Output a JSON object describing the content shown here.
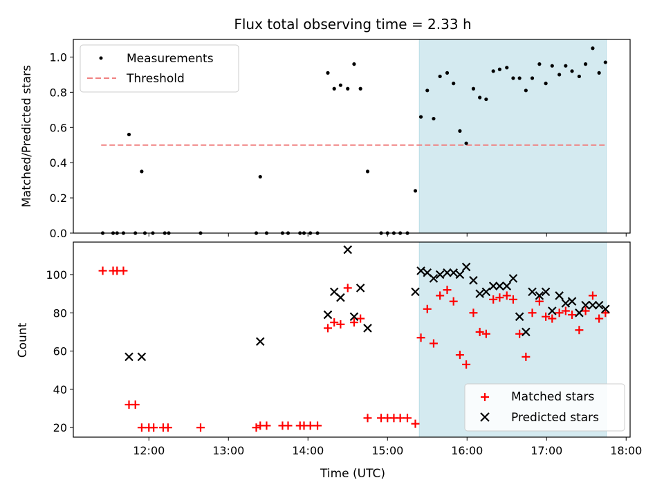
{
  "chart_data": [
    {
      "type": "scatter",
      "title": "Flux total observing time = 2.33 h",
      "xlabel": "",
      "ylabel": "Matched/Predicted stars",
      "xlim": [
        11.05,
        18.05
      ],
      "ylim": [
        0.0,
        1.1
      ],
      "yticks": [
        0.0,
        0.2,
        0.4,
        0.6,
        0.8,
        1.0
      ],
      "ytick_labels": [
        "0.0",
        "0.2",
        "0.4",
        "0.6",
        "0.8",
        "1.0"
      ],
      "highlight_span": {
        "x": [
          15.4,
          17.75
        ],
        "color": "#d4eaf0"
      },
      "legend": {
        "position": "upper-left",
        "entries": [
          {
            "label": "Measurements",
            "marker": "dot",
            "color": "#000000"
          },
          {
            "label": "Threshold",
            "marker": "dashed-line",
            "color": "#f08080"
          }
        ]
      },
      "threshold": {
        "value": 0.5,
        "x": [
          11.4,
          17.75
        ]
      },
      "series": [
        {
          "name": "Measurements",
          "color": "#000000",
          "points": [
            [
              11.42,
              0
            ],
            [
              11.55,
              0
            ],
            [
              11.6,
              0
            ],
            [
              11.68,
              0
            ],
            [
              11.75,
              0.56
            ],
            [
              11.83,
              0
            ],
            [
              11.91,
              0.35
            ],
            [
              11.95,
              0
            ],
            [
              12.05,
              0
            ],
            [
              12.2,
              0
            ],
            [
              12.25,
              0
            ],
            [
              12.65,
              0
            ],
            [
              13.35,
              0
            ],
            [
              13.4,
              0.32
            ],
            [
              13.48,
              0
            ],
            [
              13.68,
              0
            ],
            [
              13.75,
              0
            ],
            [
              13.9,
              0
            ],
            [
              13.95,
              0
            ],
            [
              14.03,
              0
            ],
            [
              14.12,
              0
            ],
            [
              14.25,
              0.91
            ],
            [
              14.33,
              0.82
            ],
            [
              14.41,
              0.84
            ],
            [
              14.5,
              0.82
            ],
            [
              14.58,
              0.96
            ],
            [
              14.66,
              0.82
            ],
            [
              14.75,
              0.35
            ],
            [
              14.92,
              0
            ],
            [
              15.0,
              0
            ],
            [
              15.08,
              0
            ],
            [
              15.16,
              0
            ],
            [
              15.25,
              0
            ],
            [
              15.35,
              0.24
            ],
            [
              15.42,
              0.66
            ],
            [
              15.5,
              0.81
            ],
            [
              15.58,
              0.65
            ],
            [
              15.66,
              0.89
            ],
            [
              15.75,
              0.91
            ],
            [
              15.83,
              0.85
            ],
            [
              15.91,
              0.58
            ],
            [
              15.99,
              0.51
            ],
            [
              16.08,
              0.82
            ],
            [
              16.16,
              0.77
            ],
            [
              16.24,
              0.76
            ],
            [
              16.33,
              0.92
            ],
            [
              16.41,
              0.93
            ],
            [
              16.5,
              0.94
            ],
            [
              16.58,
              0.88
            ],
            [
              16.66,
              0.88
            ],
            [
              16.74,
              0.81
            ],
            [
              16.82,
              0.88
            ],
            [
              16.91,
              0.96
            ],
            [
              16.99,
              0.85
            ],
            [
              17.07,
              0.95
            ],
            [
              17.16,
              0.9
            ],
            [
              17.24,
              0.95
            ],
            [
              17.32,
              0.92
            ],
            [
              17.41,
              0.89
            ],
            [
              17.49,
              0.96
            ],
            [
              17.58,
              1.05
            ],
            [
              17.66,
              0.91
            ],
            [
              17.74,
              0.97
            ]
          ]
        }
      ]
    },
    {
      "type": "scatter",
      "title": "",
      "xlabel": "Time (UTC)",
      "ylabel": "Count",
      "xlim": [
        11.05,
        18.05
      ],
      "ylim": [
        15,
        117
      ],
      "xticks": [
        12,
        13,
        14,
        15,
        16,
        17,
        18
      ],
      "xtick_labels": [
        "12:00",
        "13:00",
        "14:00",
        "15:00",
        "16:00",
        "17:00",
        "18:00"
      ],
      "yticks": [
        20,
        40,
        60,
        80,
        100
      ],
      "ytick_labels": [
        "20",
        "40",
        "60",
        "80",
        "100"
      ],
      "highlight_span": {
        "x": [
          15.4,
          17.75
        ],
        "color": "#d4eaf0"
      },
      "legend": {
        "position": "lower-right",
        "entries": [
          {
            "label": "Matched stars",
            "marker": "plus",
            "color": "#ff0000"
          },
          {
            "label": "Predicted stars",
            "marker": "x",
            "color": "#000000"
          }
        ]
      },
      "series": [
        {
          "name": "Matched stars",
          "marker": "plus",
          "color": "#ff0000",
          "points": [
            [
              11.42,
              102
            ],
            [
              11.55,
              102
            ],
            [
              11.6,
              102
            ],
            [
              11.68,
              102
            ],
            [
              11.75,
              32
            ],
            [
              11.83,
              32
            ],
            [
              11.91,
              20
            ],
            [
              12.0,
              20
            ],
            [
              12.06,
              20
            ],
            [
              12.18,
              20
            ],
            [
              12.24,
              20
            ],
            [
              12.65,
              20
            ],
            [
              13.35,
              20
            ],
            [
              13.4,
              21
            ],
            [
              13.48,
              21
            ],
            [
              13.68,
              21
            ],
            [
              13.75,
              21
            ],
            [
              13.9,
              21
            ],
            [
              13.95,
              21
            ],
            [
              14.03,
              21
            ],
            [
              14.12,
              21
            ],
            [
              14.25,
              72
            ],
            [
              14.33,
              75
            ],
            [
              14.41,
              74
            ],
            [
              14.5,
              93
            ],
            [
              14.58,
              75
            ],
            [
              14.66,
              77
            ],
            [
              14.75,
              25
            ],
            [
              14.92,
              25
            ],
            [
              15.0,
              25
            ],
            [
              15.08,
              25
            ],
            [
              15.16,
              25
            ],
            [
              15.25,
              25
            ],
            [
              15.35,
              22
            ],
            [
              15.42,
              67
            ],
            [
              15.5,
              82
            ],
            [
              15.58,
              64
            ],
            [
              15.66,
              89
            ],
            [
              15.75,
              92
            ],
            [
              15.83,
              86
            ],
            [
              15.91,
              58
            ],
            [
              15.99,
              53
            ],
            [
              16.08,
              80
            ],
            [
              16.16,
              70
            ],
            [
              16.24,
              69
            ],
            [
              16.33,
              87
            ],
            [
              16.41,
              88
            ],
            [
              16.5,
              89
            ],
            [
              16.58,
              87
            ],
            [
              16.66,
              69
            ],
            [
              16.74,
              57
            ],
            [
              16.82,
              80
            ],
            [
              16.91,
              86
            ],
            [
              16.99,
              78
            ],
            [
              17.07,
              77
            ],
            [
              17.16,
              80
            ],
            [
              17.24,
              81
            ],
            [
              17.32,
              79
            ],
            [
              17.41,
              71
            ],
            [
              17.49,
              81
            ],
            [
              17.58,
              89
            ],
            [
              17.66,
              77
            ],
            [
              17.74,
              80
            ]
          ]
        },
        {
          "name": "Predicted stars",
          "marker": "x",
          "color": "#000000",
          "points": [
            [
              11.75,
              57
            ],
            [
              11.91,
              57
            ],
            [
              13.4,
              65
            ],
            [
              14.25,
              79
            ],
            [
              14.33,
              91
            ],
            [
              14.41,
              88
            ],
            [
              14.5,
              113
            ],
            [
              14.58,
              78
            ],
            [
              14.66,
              93
            ],
            [
              14.75,
              72
            ],
            [
              15.35,
              91
            ],
            [
              15.42,
              102
            ],
            [
              15.5,
              101
            ],
            [
              15.58,
              98
            ],
            [
              15.66,
              100
            ],
            [
              15.75,
              101
            ],
            [
              15.83,
              101
            ],
            [
              15.91,
              100
            ],
            [
              15.99,
              104
            ],
            [
              16.08,
              97
            ],
            [
              16.16,
              90
            ],
            [
              16.24,
              91
            ],
            [
              16.33,
              94
            ],
            [
              16.41,
              94
            ],
            [
              16.5,
              94
            ],
            [
              16.58,
              98
            ],
            [
              16.66,
              78
            ],
            [
              16.74,
              70
            ],
            [
              16.82,
              91
            ],
            [
              16.91,
              89
            ],
            [
              16.99,
              91
            ],
            [
              17.07,
              81
            ],
            [
              17.16,
              89
            ],
            [
              17.24,
              85
            ],
            [
              17.32,
              86
            ],
            [
              17.41,
              80
            ],
            [
              17.49,
              84
            ],
            [
              17.58,
              84
            ],
            [
              17.66,
              84
            ],
            [
              17.74,
              82
            ]
          ]
        }
      ]
    }
  ]
}
